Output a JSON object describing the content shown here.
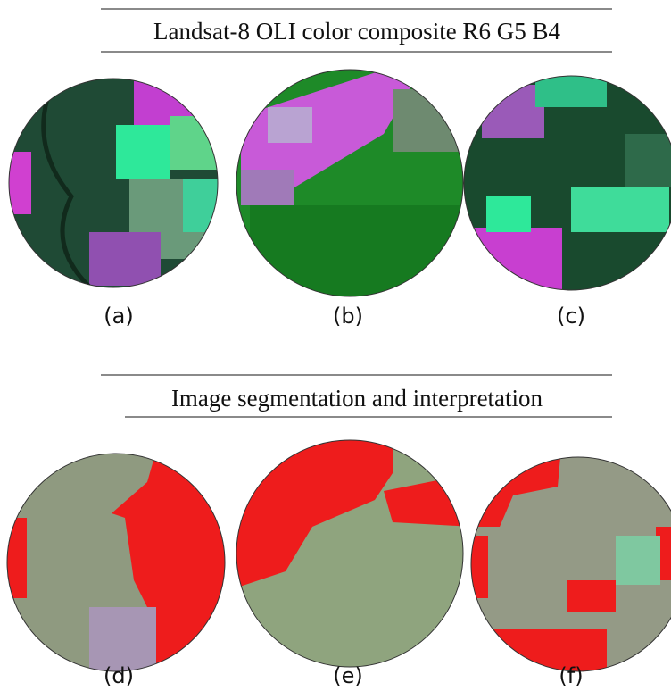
{
  "figure": {
    "sections": [
      {
        "title": "Landsat-8  OLI color composite R6 G5 B4",
        "panels": [
          "(a)",
          "(b)",
          "(c)"
        ]
      },
      {
        "title": "Image segmentation and interpretation",
        "panels": [
          "(d)",
          "(e)",
          "(f)"
        ]
      }
    ]
  }
}
